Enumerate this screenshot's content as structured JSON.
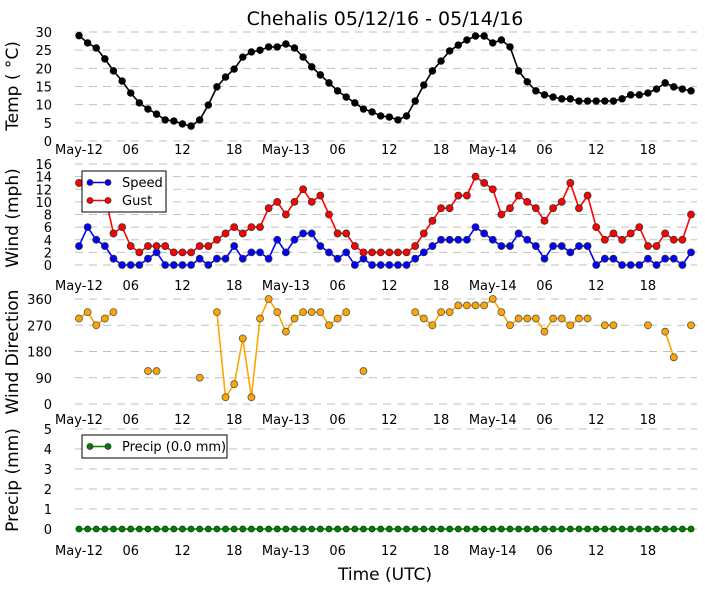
{
  "chart_data": [
    {
      "type": "line",
      "title": "Chehalis 05/12/16 - 05/14/16",
      "ylabel": "Temp ( °C)",
      "xlabel": "",
      "ylim": [
        0,
        30
      ],
      "yticks": [
        0,
        5,
        10,
        15,
        20,
        25,
        30
      ],
      "grid": true,
      "series": [
        {
          "name": "Temp",
          "color": "#000000",
          "values": [
            29,
            27,
            25.6,
            22.6,
            19.3,
            16.5,
            13.2,
            10.5,
            8.8,
            7.4,
            5.8,
            5.5,
            4.7,
            4.1,
            5.8,
            9.9,
            14.9,
            17.6,
            19.8,
            23.1,
            24.5,
            25,
            25.9,
            25.9,
            26.7,
            25.6,
            23.1,
            20.4,
            18.2,
            16,
            13.8,
            12.1,
            10.5,
            8.8,
            8,
            6.9,
            6.6,
            5.8,
            6.9,
            11,
            15.4,
            19.3,
            22,
            24.8,
            26.4,
            27.8,
            28.9,
            28.9,
            27,
            27.8,
            25.9,
            19.3,
            16.3,
            13.8,
            12.7,
            12.1,
            11.6,
            11.6,
            11,
            11,
            11,
            11,
            11,
            11.6,
            12.7,
            12.7,
            13.2,
            14.3,
            16,
            14.9,
            14.3,
            13.8
          ]
        }
      ]
    },
    {
      "type": "line",
      "ylabel": "Wind (mph)",
      "ylim": [
        0,
        16
      ],
      "yticks": [
        0,
        2,
        4,
        6,
        8,
        10,
        12,
        14,
        16
      ],
      "grid": true,
      "legend": "top-left",
      "series": [
        {
          "name": "Speed",
          "color": "#0000ff",
          "values": [
            3,
            6,
            4,
            3,
            1,
            0,
            0,
            0,
            1,
            2,
            0,
            0,
            0,
            0,
            1,
            0,
            1,
            1,
            3,
            1,
            2,
            2,
            1,
            4,
            2,
            4,
            5,
            5,
            3,
            2,
            1,
            2,
            0,
            1,
            0,
            0,
            0,
            0,
            0,
            1,
            2,
            3,
            4,
            4,
            4,
            4,
            6,
            5,
            4,
            3,
            3,
            5,
            4,
            3,
            1,
            3,
            3,
            2,
            3,
            3,
            0,
            1,
            1,
            0,
            0,
            0,
            1,
            0,
            1,
            1,
            0,
            2
          ]
        },
        {
          "name": "Gust",
          "color": "#ff0000",
          "values": [
            13,
            12,
            12,
            11,
            5,
            6,
            3,
            2,
            3,
            3,
            3,
            2,
            2,
            2,
            3,
            3,
            4,
            5,
            6,
            5,
            6,
            6,
            9,
            10,
            8,
            10,
            12,
            10,
            11,
            8,
            5,
            5,
            3,
            2,
            2,
            2,
            2,
            2,
            2,
            3,
            5,
            7,
            9,
            9,
            11,
            11,
            14,
            13,
            12,
            8,
            9,
            11,
            10,
            9,
            7,
            9,
            10,
            13,
            9,
            11,
            6,
            4,
            5,
            4,
            5,
            6,
            3,
            3,
            5,
            4,
            4,
            8
          ]
        }
      ]
    },
    {
      "type": "line",
      "ylabel": "Wind Direction",
      "ylim": [
        0,
        360
      ],
      "yticks": [
        0,
        90,
        180,
        270,
        360
      ],
      "grid": true,
      "series": [
        {
          "name": "Direction",
          "color": "#ffa500",
          "values": [
            293,
            315,
            270,
            293,
            315,
            null,
            null,
            null,
            113,
            113,
            null,
            null,
            null,
            null,
            90,
            null,
            315,
            23,
            68,
            225,
            23,
            293,
            360,
            315,
            248,
            293,
            315,
            315,
            315,
            270,
            293,
            315,
            null,
            113,
            null,
            null,
            null,
            null,
            null,
            315,
            293,
            270,
            315,
            315,
            338,
            338,
            338,
            338,
            360,
            315,
            270,
            293,
            293,
            293,
            248,
            293,
            293,
            270,
            293,
            293,
            null,
            270,
            270,
            null,
            null,
            null,
            270,
            null,
            248,
            160,
            null,
            270
          ]
        }
      ]
    },
    {
      "type": "line",
      "ylabel": "Precip (mm)",
      "xlabel": "Time (UTC)",
      "ylim": [
        0,
        5
      ],
      "yticks": [
        0,
        1,
        2,
        3,
        4,
        5
      ],
      "grid": true,
      "legend": "top-left",
      "series": [
        {
          "name": "Precip (0.0 mm)",
          "color": "#007f00",
          "values": [
            0,
            0,
            0,
            0,
            0,
            0,
            0,
            0,
            0,
            0,
            0,
            0,
            0,
            0,
            0,
            0,
            0,
            0,
            0,
            0,
            0,
            0,
            0,
            0,
            0,
            0,
            0,
            0,
            0,
            0,
            0,
            0,
            0,
            0,
            0,
            0,
            0,
            0,
            0,
            0,
            0,
            0,
            0,
            0,
            0,
            0,
            0,
            0,
            0,
            0,
            0,
            0,
            0,
            0,
            0,
            0,
            0,
            0,
            0,
            0,
            0,
            0,
            0,
            0,
            0,
            0,
            0,
            0,
            0,
            0,
            0,
            0
          ]
        }
      ]
    }
  ],
  "x_axis": {
    "unit": "hours since May-12 00:00 UTC",
    "tick_hours": [
      0,
      6,
      12,
      18,
      24,
      30,
      36,
      42,
      48,
      54,
      60,
      66
    ],
    "tick_labels": [
      "May-12",
      "06",
      "12",
      "18",
      "May-13",
      "06",
      "12",
      "18",
      "May-14",
      "06",
      "12",
      "18"
    ]
  }
}
